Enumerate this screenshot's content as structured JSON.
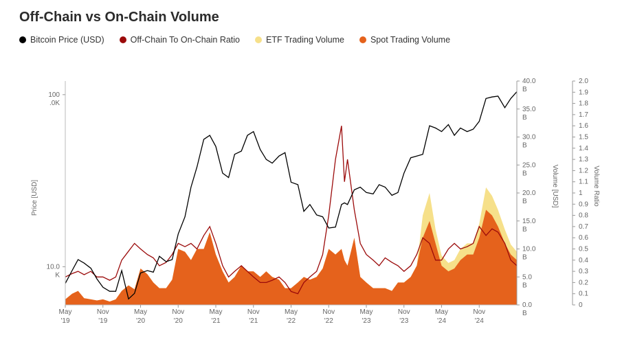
{
  "chart_data": {
    "type": "area+line",
    "title": "Off-Chain vs On-Chain Volume",
    "legend": [
      {
        "label": "Bitcoin Price (USD)",
        "color": "#000000"
      },
      {
        "label": "Off-Chain To On-Chain Ratio",
        "color": "#9b0a0a"
      },
      {
        "label": "ETF Trading Volume",
        "color": "#f6e08a"
      },
      {
        "label": "Spot Trading Volume",
        "color": "#e5621c"
      }
    ],
    "x_ticks": [
      {
        "label": "May '19",
        "t": 2019.33
      },
      {
        "label": "Nov '19",
        "t": 2019.83
      },
      {
        "label": "May '20",
        "t": 2020.33
      },
      {
        "label": "Nov '20",
        "t": 2020.83
      },
      {
        "label": "May '21",
        "t": 2021.33
      },
      {
        "label": "Nov '21",
        "t": 2021.83
      },
      {
        "label": "May '22",
        "t": 2022.33
      },
      {
        "label": "Nov '22",
        "t": 2022.83
      },
      {
        "label": "May '23",
        "t": 2023.33
      },
      {
        "label": "Nov '23",
        "t": 2023.83
      },
      {
        "label": "May '24",
        "t": 2024.33
      },
      {
        "label": "Nov '24",
        "t": 2024.83
      }
    ],
    "xlim": [
      2019.33,
      2025.33
    ],
    "price_axis": {
      "title": "Price [USD]",
      "scale": "log",
      "ylim": [
        6000,
        120000
      ],
      "ticks": [
        {
          "value": 10000,
          "label": "10.0 K"
        },
        {
          "value": 100000,
          "label": "100 .0K"
        }
      ]
    },
    "volume_axis": {
      "title": "Volume [USD]",
      "ylim": [
        0,
        40
      ],
      "unit": "B",
      "ticks": [
        "0.0 B",
        "5.0 B",
        "10.0 B",
        "15.0 B",
        "20.0 B",
        "25.0 B",
        "30.0 B",
        "35.0 B",
        "40.0 B"
      ]
    },
    "ratio_axis": {
      "title": "Volume Ratio",
      "ylim": [
        0,
        2.0
      ],
      "ticks": [
        "0",
        "0.1",
        "0.2",
        "0.3",
        "0.4",
        "0.5",
        "0.6",
        "0.7",
        "0.8",
        "0.9",
        "1",
        "1.1",
        "1.2",
        "1.3",
        "1.4",
        "1.5",
        "1.6",
        "1.7",
        "1.8",
        "1.9",
        "2.0"
      ]
    },
    "series": {
      "t": [
        2019.33,
        2019.42,
        2019.5,
        2019.58,
        2019.67,
        2019.75,
        2019.83,
        2019.92,
        2020.0,
        2020.08,
        2020.17,
        2020.25,
        2020.33,
        2020.42,
        2020.5,
        2020.58,
        2020.67,
        2020.75,
        2020.83,
        2020.92,
        2021.0,
        2021.08,
        2021.17,
        2021.25,
        2021.33,
        2021.42,
        2021.5,
        2021.58,
        2021.67,
        2021.75,
        2021.83,
        2021.92,
        2022.0,
        2022.08,
        2022.17,
        2022.25,
        2022.33,
        2022.42,
        2022.5,
        2022.58,
        2022.67,
        2022.75,
        2022.83,
        2022.92,
        2023.0,
        2023.04,
        2023.08,
        2023.17,
        2023.25,
        2023.33,
        2023.42,
        2023.5,
        2023.58,
        2023.67,
        2023.75,
        2023.83,
        2023.92,
        2024.0,
        2024.08,
        2024.17,
        2024.25,
        2024.33,
        2024.42,
        2024.5,
        2024.58,
        2024.67,
        2024.75,
        2024.83,
        2024.92,
        2025.0,
        2025.08,
        2025.17,
        2025.25,
        2025.33
      ],
      "btc_price_usd": [
        8000,
        9500,
        11000,
        10500,
        9800,
        8500,
        7600,
        7200,
        7200,
        9500,
        6500,
        7000,
        9200,
        9500,
        9300,
        11500,
        10700,
        11000,
        15500,
        19500,
        29000,
        38000,
        55000,
        58000,
        50000,
        35000,
        33000,
        45000,
        47000,
        58000,
        61000,
        48000,
        42000,
        40000,
        44000,
        46000,
        31000,
        30000,
        21000,
        23000,
        20000,
        19500,
        16800,
        17000,
        23000,
        23500,
        23000,
        28000,
        29000,
        27000,
        26500,
        30000,
        29000,
        26000,
        27000,
        35000,
        43000,
        44000,
        45000,
        66000,
        64000,
        61000,
        67000,
        58000,
        64000,
        61000,
        63000,
        70000,
        95000,
        97000,
        98000,
        84000,
        95000,
        104000
      ],
      "off_on_ratio": [
        0.25,
        0.28,
        0.3,
        0.27,
        0.3,
        0.25,
        0.25,
        0.22,
        0.25,
        0.4,
        0.48,
        0.55,
        0.5,
        0.45,
        0.42,
        0.35,
        0.38,
        0.45,
        0.55,
        0.52,
        0.55,
        0.5,
        0.62,
        0.7,
        0.55,
        0.35,
        0.25,
        0.3,
        0.35,
        0.3,
        0.25,
        0.2,
        0.2,
        0.22,
        0.25,
        0.2,
        0.12,
        0.1,
        0.2,
        0.25,
        0.3,
        0.45,
        0.8,
        1.3,
        1.6,
        1.1,
        1.3,
        0.85,
        0.55,
        0.45,
        0.4,
        0.35,
        0.42,
        0.38,
        0.35,
        0.3,
        0.35,
        0.45,
        0.6,
        0.55,
        0.4,
        0.4,
        0.5,
        0.55,
        0.5,
        0.52,
        0.55,
        0.7,
        0.62,
        0.68,
        0.65,
        0.55,
        0.4,
        0.35
      ],
      "spot_volume_b": [
        1,
        2,
        2.5,
        1.2,
        1,
        0.8,
        1,
        0.6,
        1,
        2.5,
        3.5,
        2.8,
        6.5,
        5.5,
        4,
        3,
        3,
        4.5,
        10,
        9.5,
        8,
        10,
        10,
        13,
        9,
        6,
        4,
        5,
        7,
        6,
        6,
        5,
        6,
        5,
        4.5,
        3,
        3,
        4,
        5,
        4.5,
        5,
        6.5,
        10,
        9,
        10,
        8,
        7,
        12,
        5,
        4,
        3,
        3,
        3,
        2.5,
        4,
        4,
        5,
        7,
        12,
        15,
        11,
        7,
        6,
        6.5,
        8,
        9,
        9,
        12,
        17,
        16,
        14,
        11,
        9,
        8
      ],
      "etf_volume_b": [
        0,
        0,
        0,
        0,
        0,
        0,
        0,
        0,
        0,
        0,
        0,
        0,
        0,
        0,
        0,
        0,
        0,
        0,
        0,
        0,
        0,
        0,
        0,
        0,
        0,
        0,
        0,
        0,
        0,
        0,
        0,
        0,
        0,
        0,
        0,
        0,
        0,
        0,
        0,
        0,
        0,
        0,
        0,
        0,
        0,
        0,
        0,
        0,
        0,
        0,
        0,
        0,
        0,
        0,
        0,
        0,
        0,
        0,
        4,
        5,
        2.5,
        1.8,
        1.5,
        1.5,
        2,
        2,
        2,
        2.5,
        4,
        3.5,
        3,
        2.5,
        1.8,
        1.5
      ]
    }
  }
}
